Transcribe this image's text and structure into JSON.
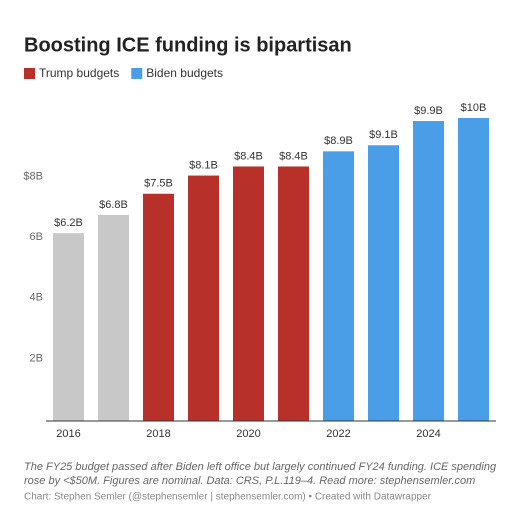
{
  "chart_data": {
    "type": "bar",
    "title": "Boosting ICE funding is bipartisan",
    "legend": [
      {
        "name": "Trump budgets",
        "color": "#b8302a"
      },
      {
        "name": "Biden budgets",
        "color": "#4a9ee8"
      }
    ],
    "categories": [
      "2016",
      null,
      "2018",
      null,
      "2020",
      null,
      "2022",
      null,
      "2024",
      null
    ],
    "values": [
      6.2,
      6.8,
      7.5,
      8.1,
      8.4,
      8.4,
      8.9,
      9.1,
      9.9,
      10
    ],
    "value_labels": [
      "$6.2B",
      "$6.8B",
      "$7.5B",
      "$8.1B",
      "$8.4B",
      "$8.4B",
      "$8.9B",
      "$9.1B",
      "$9.9B",
      "$10B"
    ],
    "colors": [
      "#c8c8c8",
      "#c8c8c8",
      "#b8302a",
      "#b8302a",
      "#b8302a",
      "#b8302a",
      "#4a9ee8",
      "#4a9ee8",
      "#4a9ee8",
      "#4a9ee8"
    ],
    "ylim": [
      0,
      10
    ],
    "yticks": [
      {
        "value": 2,
        "label": "2B"
      },
      {
        "value": 4,
        "label": "4B"
      },
      {
        "value": 6,
        "label": "6B"
      },
      {
        "value": 8,
        "label": "$8B"
      }
    ],
    "notes": [
      "The FY25 budget passed after Biden left office but largely continued FY24 funding. ICE spending",
      "rose by <$50M. Figures are nominal. Data: CRS, P.L.119–4. Read more: stephensemler.com"
    ],
    "source": "Chart: Stephen Semler (@stephensemler | stephensemler.com) • Created with Datawrapper"
  }
}
